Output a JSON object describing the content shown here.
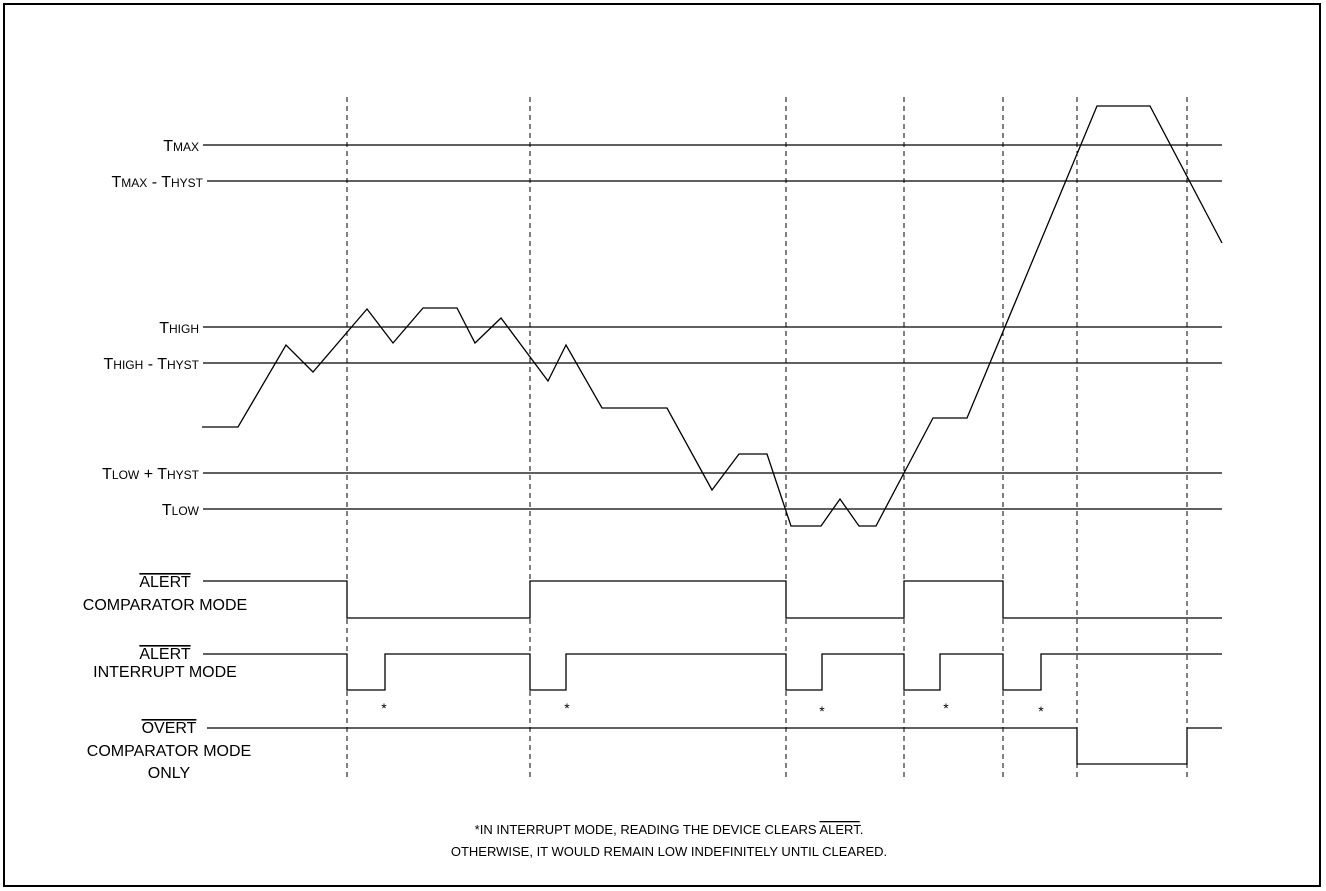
{
  "threshold_levels": [
    {
      "main": "T",
      "sub": "MAX",
      "tail": ""
    },
    {
      "main": "T",
      "sub": "MAX",
      "tail": " - T",
      "sub2": "HYST"
    },
    {
      "main": "T",
      "sub": "HIGH",
      "tail": ""
    },
    {
      "main": "T",
      "sub": "HIGH",
      "tail": " - T",
      "sub2": "HYST"
    },
    {
      "main": "T",
      "sub": "LOW",
      "tail": " + T",
      "sub2": "HYST"
    },
    {
      "main": "T",
      "sub": "LOW",
      "tail": ""
    }
  ],
  "signals": {
    "alert_comparator": {
      "name": "ALERT",
      "mode_line1": "COMPARATOR MODE",
      "mode_line2": ""
    },
    "alert_interrupt": {
      "name": "ALERT",
      "mode_line1": "INTERRUPT MODE",
      "mode_line2": ""
    },
    "overt_comparator": {
      "name": "OVERT",
      "mode_line1": "COMPARATOR MODE",
      "mode_line2": "ONLY"
    }
  },
  "asterisk": "*",
  "footnote": {
    "line1_before": "*IN INTERRUPT MODE, READING THE DEVICE CLEARS ",
    "line1_overbar": "ALERT",
    "line1_after": ".",
    "line2": "OTHERWISE, IT WOULD REMAIN LOW INDEFINITELY UNTIL CLEARED."
  },
  "colors": {
    "line": "#000000",
    "background": "#ffffff"
  }
}
